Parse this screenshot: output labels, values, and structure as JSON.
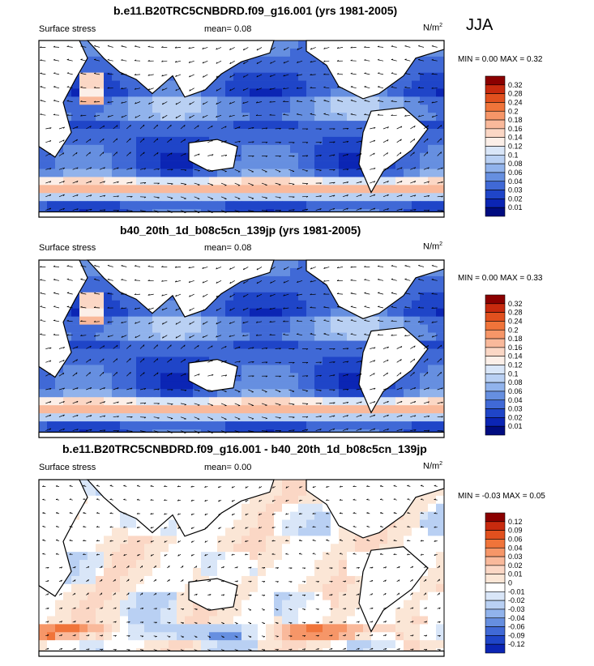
{
  "season": "JJA",
  "colorbars": {
    "upper": {
      "labels": [
        "0.32",
        "0.28",
        "0.24",
        "0.2",
        "0.18",
        "0.16",
        "0.14",
        "0.12",
        "0.1",
        "0.08",
        "0.06",
        "0.04",
        "0.03",
        "0.02",
        "0.01"
      ],
      "colors": [
        "#8b0000",
        "#c82a0e",
        "#e1501e",
        "#f0743a",
        "#f69668",
        "#f9b99b",
        "#fbd7c5",
        "#fcefe8",
        "#d9e6f8",
        "#b9d0f3",
        "#91b3ec",
        "#668fe0",
        "#4069d6",
        "#1f45c8",
        "#0b25b4",
        "#000c80"
      ]
    },
    "diff": {
      "labels": [
        "0.12",
        "0.09",
        "0.06",
        "0.04",
        "0.03",
        "0.02",
        "0.01",
        "0",
        "-0.01",
        "-0.02",
        "-0.03",
        "-0.04",
        "-0.06",
        "-0.09",
        "-0.12"
      ],
      "colors": [
        "#8b0000",
        "#c82a0e",
        "#e1501e",
        "#f0743a",
        "#f69668",
        "#f9b99b",
        "#fbd7c5",
        "#fbe6d6",
        "#ffffff",
        "#d9e6f8",
        "#b9d0f3",
        "#91b3ec",
        "#668fe0",
        "#4069d6",
        "#1f45c8",
        "#0b25b4"
      ]
    }
  },
  "chart_data": [
    {
      "type": "heatmap",
      "title": "b.e11.B20TRC5CNBDRD.f09_g16.001 (yrs 1981-2005)",
      "variable": "Surface stress",
      "mean_text": "mean=   0.08",
      "units": "N/m",
      "units_sup": "2",
      "min_max_text": "MIN =   0.00 MAX =   0.32",
      "min": 0.0,
      "max": 0.32,
      "mean": 0.08,
      "colorbar": "upper"
    },
    {
      "type": "heatmap",
      "title": "b40_20th_1d_b08c5cn_139jp (yrs 1981-2005)",
      "variable": "Surface stress",
      "mean_text": "mean=   0.08",
      "units": "N/m",
      "units_sup": "2",
      "min_max_text": "MIN =   0.00 MAX =   0.33",
      "min": 0.0,
      "max": 0.33,
      "mean": 0.08,
      "colorbar": "upper"
    },
    {
      "type": "heatmap",
      "title": "b.e11.B20TRC5CNBDRD.f09_g16.001 - b40_20th_1d_b08c5cn_139jp",
      "variable": "Surface stress",
      "mean_text": "mean=   0.00",
      "units": "N/m",
      "units_sup": "2",
      "min_max_text": "MIN =  -0.03 MAX =   0.05",
      "min": -0.03,
      "max": 0.05,
      "mean": 0.0,
      "colorbar": "diff"
    }
  ]
}
